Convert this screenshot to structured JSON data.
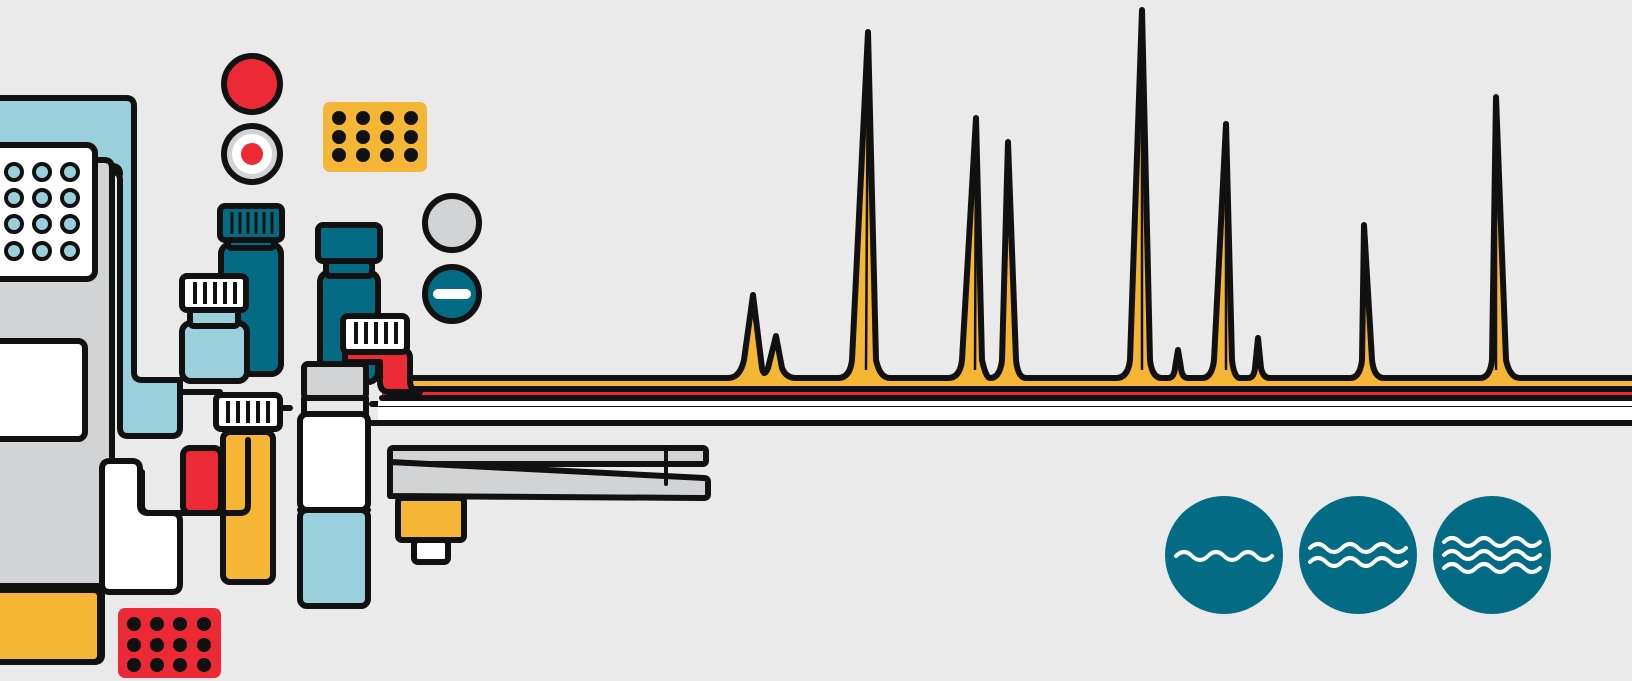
{
  "colors": {
    "background": "#eaeaea",
    "outline": "#111111",
    "light_blue": "#9ad0dc",
    "teal": "#036c84",
    "yellow": "#f5b535",
    "red": "#ec2a35",
    "grey": "#d2d3d5",
    "white": "#ffffff"
  },
  "icons": {
    "flow_rate_icons": [
      "slow-flow-icon",
      "medium-flow-icon",
      "fast-flow-icon"
    ],
    "indicators": [
      "record-red-icon",
      "record-target-icon",
      "grey-indicator-icon",
      "minus-indicator-icon"
    ]
  },
  "chromatogram": {
    "baseline_color": "#f5b535",
    "peak_heights": [
      0.2,
      0.1,
      0.92,
      0.7,
      0.64,
      0.98,
      0.07,
      0.68,
      0.1,
      0.41,
      0.75
    ]
  }
}
